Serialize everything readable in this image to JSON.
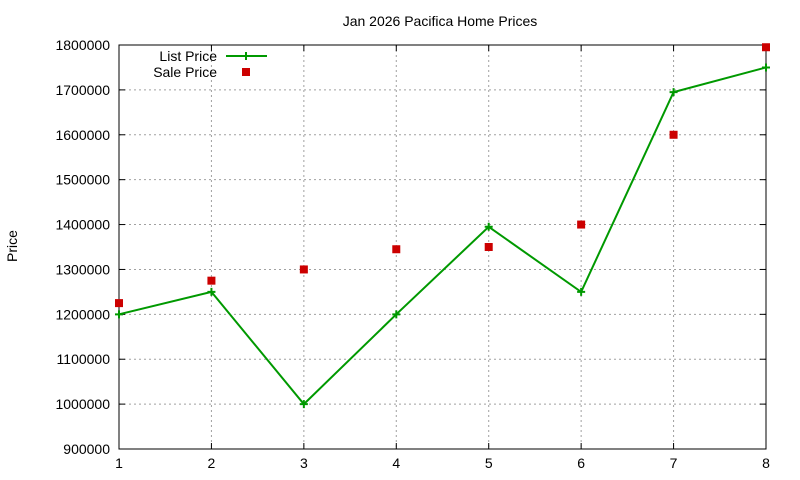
{
  "chart_data": {
    "type": "line",
    "title": "Jan 2026 Pacifica Home Prices",
    "xlabel": "",
    "ylabel": "Price",
    "x": [
      1,
      2,
      3,
      4,
      5,
      6,
      7,
      8
    ],
    "xlim": [
      1,
      8
    ],
    "ylim": [
      900000,
      1800000
    ],
    "x_ticks": [
      "1",
      "2",
      "3",
      "4",
      "5",
      "6",
      "7",
      "8"
    ],
    "y_ticks": [
      "900000",
      "1000000",
      "1100000",
      "1200000",
      "1300000",
      "1400000",
      "1500000",
      "1600000",
      "1700000",
      "1800000"
    ],
    "grid": true,
    "legend_position": "top-left",
    "series": [
      {
        "name": "List Price",
        "style": "line-with-plus-markers",
        "color": "#009900",
        "values": [
          1200000,
          1250000,
          1000000,
          1200000,
          1395000,
          1250000,
          1695000,
          1750000
        ]
      },
      {
        "name": "Sale Price",
        "style": "square-markers",
        "color": "#cc0000",
        "values": [
          1225000,
          1275000,
          1300000,
          1345000,
          1350000,
          1400000,
          1600000,
          1795000
        ]
      }
    ]
  }
}
